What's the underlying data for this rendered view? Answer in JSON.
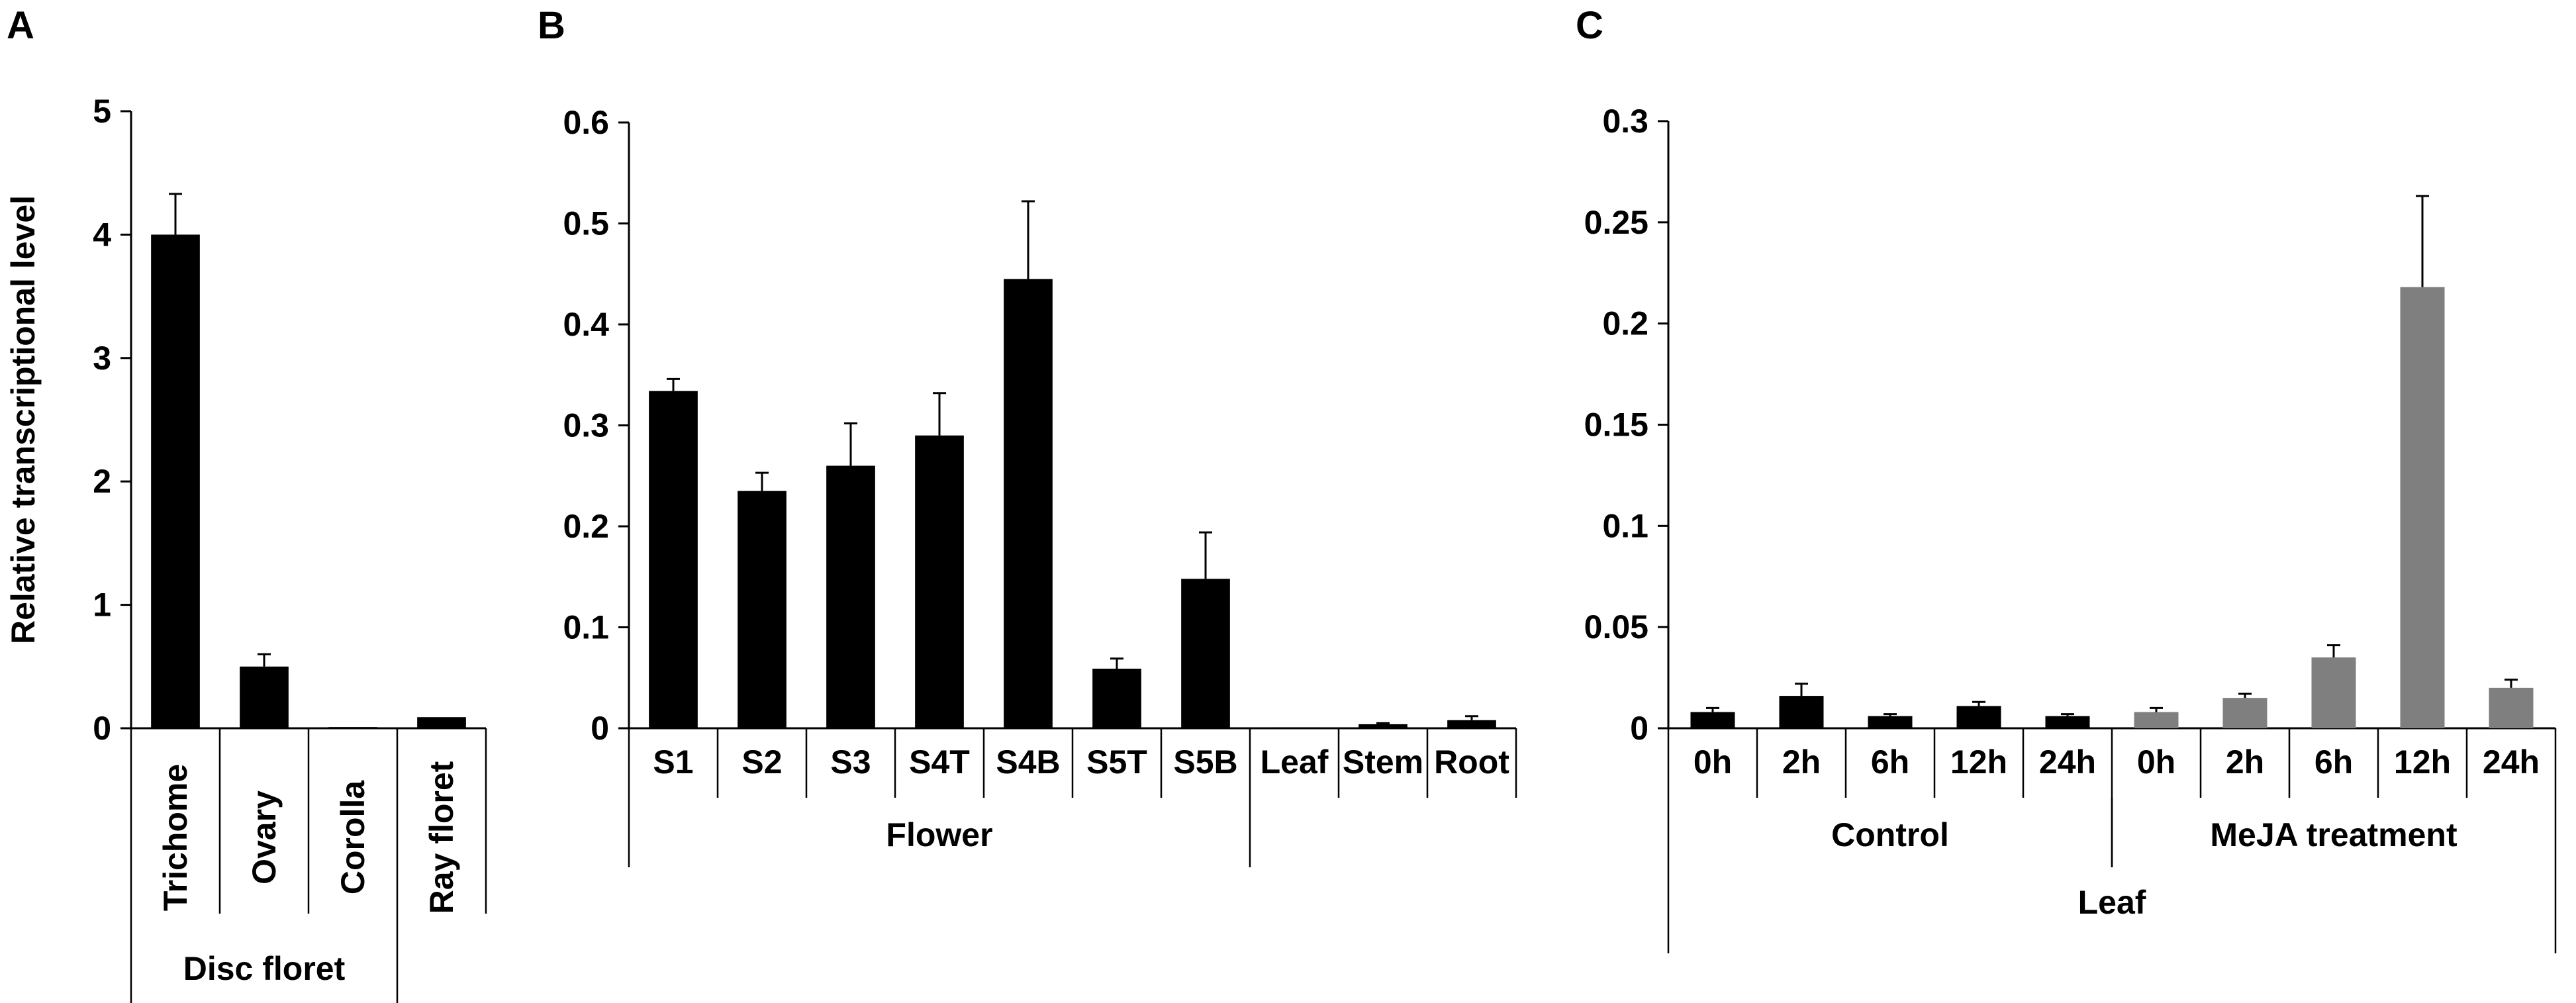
{
  "chart_data": [
    {
      "type": "bar",
      "panel_label": "A",
      "ylabel": "Relative transcriptional level",
      "ylim": [
        0,
        5
      ],
      "yticks": [
        "0",
        "1",
        "2",
        "3",
        "4",
        "5"
      ],
      "categories": [
        "Trichome",
        "Ovary",
        "Corolla",
        "Ray floret"
      ],
      "values": [
        4.0,
        0.5,
        0.01,
        0.09
      ],
      "errors": [
        0.33,
        0.1,
        0.0,
        0.0
      ],
      "bar_colors": [
        "#000000",
        "#000000",
        "#000000",
        "#000000"
      ],
      "groups": [
        {
          "label": "Disc floret",
          "span": [
            0,
            2
          ]
        }
      ],
      "outer_groups": [],
      "grid": false
    },
    {
      "type": "bar",
      "panel_label": "B",
      "ylabel": "",
      "ylim": [
        0,
        0.6
      ],
      "yticks": [
        "0",
        "0.1",
        "0.2",
        "0.3",
        "0.4",
        "0.5",
        "0.6"
      ],
      "categories": [
        "S1",
        "S2",
        "S3",
        "S4T",
        "S4B",
        "S5T",
        "S5B",
        "Leaf",
        "Stem",
        "Root"
      ],
      "values": [
        0.334,
        0.235,
        0.26,
        0.29,
        0.445,
        0.059,
        0.148,
        0.001,
        0.004,
        0.008
      ],
      "errors": [
        0.012,
        0.018,
        0.042,
        0.042,
        0.077,
        0.01,
        0.046,
        0.0,
        0.001,
        0.004
      ],
      "bar_colors": [
        "#000000",
        "#000000",
        "#000000",
        "#000000",
        "#000000",
        "#000000",
        "#000000",
        "#000000",
        "#000000",
        "#000000"
      ],
      "groups": [
        {
          "label": "Flower",
          "span": [
            0,
            6
          ]
        }
      ],
      "outer_groups": [],
      "grid": false
    },
    {
      "type": "bar",
      "panel_label": "C",
      "ylabel": "",
      "ylim": [
        0,
        0.3
      ],
      "yticks": [
        "0",
        "0.05",
        "0.1",
        "0.15",
        "0.2",
        "0.25",
        "0.3"
      ],
      "categories": [
        "0h",
        "2h",
        "6h",
        "12h",
        "24h",
        "0h",
        "2h",
        "6h",
        "12h",
        "24h"
      ],
      "values": [
        0.008,
        0.016,
        0.006,
        0.011,
        0.006,
        0.008,
        0.015,
        0.035,
        0.218,
        0.02
      ],
      "errors": [
        0.002,
        0.006,
        0.001,
        0.002,
        0.001,
        0.002,
        0.002,
        0.006,
        0.045,
        0.004
      ],
      "bar_colors": [
        "#000000",
        "#000000",
        "#000000",
        "#000000",
        "#000000",
        "#7f7f7f",
        "#7f7f7f",
        "#7f7f7f",
        "#7f7f7f",
        "#7f7f7f"
      ],
      "groups": [
        {
          "label": "Control",
          "span": [
            0,
            4
          ]
        },
        {
          "label": "MeJA treatment",
          "span": [
            5,
            9
          ]
        }
      ],
      "outer_groups": [
        {
          "label": "Leaf",
          "span": [
            0,
            9
          ]
        }
      ],
      "grid": false
    }
  ]
}
